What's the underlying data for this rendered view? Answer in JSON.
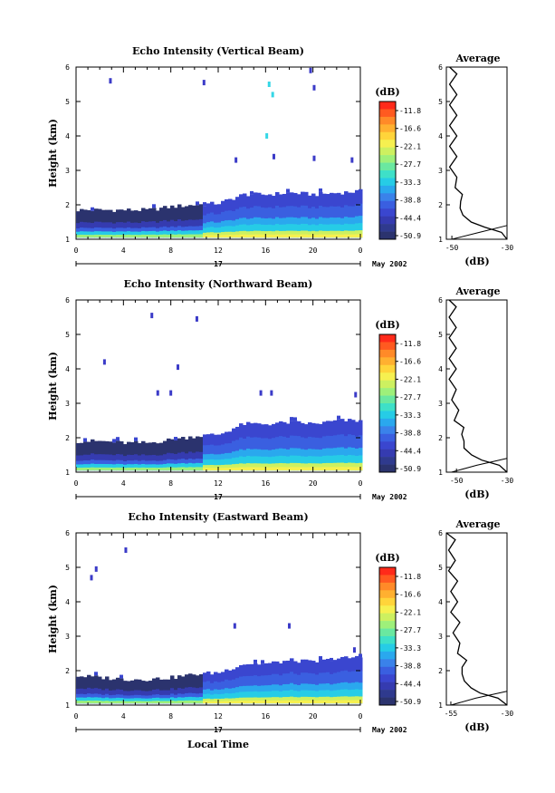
{
  "chart_data": [
    {
      "type": "heatmap",
      "title": "Echo Intensity (Vertical Beam)",
      "ylabel": "Height (km)",
      "xlabel": "",
      "x_ticks": [
        "0",
        "4",
        "8",
        "12",
        "16",
        "20",
        "0"
      ],
      "y_ticks": [
        "1",
        "2",
        "3",
        "4",
        "5",
        "6"
      ],
      "xlim": [
        0,
        24
      ],
      "ylim": [
        1,
        6
      ],
      "date_day": "17",
      "date_month": "May 2002",
      "layer_top_km": [
        1.85,
        1.85,
        1.85,
        1.85,
        1.95,
        2.0,
        2.05,
        2.3,
        2.3,
        2.35,
        2.3,
        2.35,
        2.4
      ],
      "high_echoes": [
        {
          "t": 2.9,
          "h": 5.6,
          "c": "#3b3bc8"
        },
        {
          "t": 10.8,
          "h": 5.55,
          "c": "#3b3bc8"
        },
        {
          "t": 16.3,
          "h": 5.5,
          "c": "#35d7e6"
        },
        {
          "t": 16.6,
          "h": 5.2,
          "c": "#35d7e6"
        },
        {
          "t": 16.1,
          "h": 4.0,
          "c": "#35d7e6"
        },
        {
          "t": 20.1,
          "h": 5.4,
          "c": "#3b3bc8"
        },
        {
          "t": 19.8,
          "h": 5.9,
          "c": "#3b3bc8"
        },
        {
          "t": 13.5,
          "h": 3.3,
          "c": "#3b3bc8"
        },
        {
          "t": 16.7,
          "h": 3.4,
          "c": "#3b3bc8"
        },
        {
          "t": 20.1,
          "h": 3.35,
          "c": "#3b3bc8"
        },
        {
          "t": 23.3,
          "h": 3.3,
          "c": "#3b3bc8"
        }
      ],
      "average": {
        "title": "Average",
        "xlabel": "(dB)",
        "x_ticks": [
          "-50",
          "-30"
        ],
        "xlim": [
          -52,
          -30
        ],
        "y_ticks": [
          "1",
          "2",
          "3",
          "4",
          "5",
          "6"
        ],
        "heights": [
          1.0,
          1.2,
          1.35,
          1.5,
          1.7,
          1.9,
          2.1,
          2.3,
          2.5,
          2.8,
          3.1,
          3.4,
          3.7,
          4.0,
          4.3,
          4.6,
          4.9,
          5.2,
          5.5,
          5.8,
          6.0
        ],
        "values": [
          -30,
          -32,
          -38,
          -43,
          -46,
          -47,
          -46,
          -47,
          -48,
          -49,
          -50,
          -49,
          -50,
          -49,
          -50,
          -49,
          -50,
          -49,
          -50,
          -49,
          -50
        ],
        "low_line_heights": [
          1.0,
          1.2,
          1.4
        ],
        "low_line_values": [
          -50,
          -40,
          -30
        ]
      }
    },
    {
      "type": "heatmap",
      "title": "Echo Intensity (Northward Beam)",
      "ylabel": "Height (km)",
      "xlabel": "",
      "x_ticks": [
        "0",
        "4",
        "8",
        "12",
        "16",
        "20",
        "0"
      ],
      "y_ticks": [
        "1",
        "2",
        "3",
        "4",
        "5",
        "6"
      ],
      "xlim": [
        0,
        24
      ],
      "ylim": [
        1,
        6
      ],
      "date_day": "17",
      "date_month": "May 2002",
      "layer_top_km": [
        1.9,
        1.9,
        1.85,
        1.85,
        1.95,
        2.05,
        2.1,
        2.4,
        2.4,
        2.45,
        2.4,
        2.5,
        2.5
      ],
      "high_echoes": [
        {
          "t": 6.4,
          "h": 5.55,
          "c": "#3b3bc8"
        },
        {
          "t": 10.2,
          "h": 5.45,
          "c": "#3b3bc8"
        },
        {
          "t": 2.4,
          "h": 4.2,
          "c": "#3b3bc8"
        },
        {
          "t": 8.6,
          "h": 4.05,
          "c": "#3b3bc8"
        },
        {
          "t": 6.9,
          "h": 3.3,
          "c": "#3b3bc8"
        },
        {
          "t": 8.0,
          "h": 3.3,
          "c": "#3b3bc8"
        },
        {
          "t": 15.6,
          "h": 3.3,
          "c": "#3b3bc8"
        },
        {
          "t": 16.5,
          "h": 3.3,
          "c": "#3b3bc8"
        },
        {
          "t": 23.6,
          "h": 3.25,
          "c": "#3b3bc8"
        }
      ],
      "average": {
        "title": "Average",
        "xlabel": "(dB)",
        "x_ticks": [
          "-50",
          "-30"
        ],
        "xlim": [
          -54,
          -30
        ],
        "y_ticks": [
          "1",
          "2",
          "3",
          "4",
          "5",
          "6"
        ],
        "heights": [
          1.0,
          1.2,
          1.35,
          1.5,
          1.7,
          1.9,
          2.1,
          2.3,
          2.5,
          2.8,
          3.1,
          3.4,
          3.7,
          4.0,
          4.3,
          4.6,
          4.9,
          5.2,
          5.5,
          5.8,
          6.0
        ],
        "values": [
          -30,
          -33,
          -40,
          -44,
          -47,
          -47,
          -47,
          -48,
          -50,
          -50,
          -51,
          -51,
          -52,
          -51,
          -52,
          -51,
          -52,
          -51,
          -52,
          -51,
          -52
        ],
        "low_line_heights": [
          1.0,
          1.2,
          1.4
        ],
        "low_line_values": [
          -52,
          -42,
          -30
        ]
      }
    },
    {
      "type": "heatmap",
      "title": "Echo Intensity (Eastward Beam)",
      "ylabel": "Height (km)",
      "xlabel": "Local Time",
      "x_ticks": [
        "0",
        "4",
        "8",
        "12",
        "16",
        "20",
        "0"
      ],
      "y_ticks": [
        "1",
        "2",
        "3",
        "4",
        "5",
        "6"
      ],
      "xlim": [
        0,
        24
      ],
      "ylim": [
        1,
        6
      ],
      "date_day": "17",
      "date_month": "May 2002",
      "layer_top_km": [
        1.85,
        1.8,
        1.75,
        1.75,
        1.8,
        1.9,
        1.95,
        2.2,
        2.2,
        2.3,
        2.25,
        2.35,
        2.4
      ],
      "high_echoes": [
        {
          "t": 4.2,
          "h": 5.5,
          "c": "#3b3bc8"
        },
        {
          "t": 1.7,
          "h": 4.95,
          "c": "#3b3bc8"
        },
        {
          "t": 1.3,
          "h": 4.7,
          "c": "#3b3bc8"
        },
        {
          "t": 13.4,
          "h": 3.3,
          "c": "#3b3bc8"
        },
        {
          "t": 18.0,
          "h": 3.3,
          "c": "#3b3bc8"
        },
        {
          "t": 23.5,
          "h": 2.6,
          "c": "#3b3bc8"
        }
      ],
      "average": {
        "title": "Average",
        "xlabel": "(dB)",
        "x_ticks": [
          "-55",
          "-30"
        ],
        "xlim": [
          -57,
          -30
        ],
        "y_ticks": [
          "1",
          "2",
          "3",
          "4",
          "5",
          "6"
        ],
        "heights": [
          1.0,
          1.2,
          1.35,
          1.5,
          1.7,
          1.9,
          2.1,
          2.3,
          2.5,
          2.8,
          3.1,
          3.4,
          3.7,
          4.0,
          4.3,
          4.6,
          4.9,
          5.2,
          5.5,
          5.8,
          6.0
        ],
        "values": [
          -30,
          -34,
          -42,
          -46,
          -49,
          -50,
          -49,
          -49,
          -51,
          -52,
          -53,
          -52,
          -54,
          -53,
          -54,
          -53,
          -55,
          -54,
          -55,
          -54,
          -56
        ],
        "low_line_heights": [
          1.0,
          1.2,
          1.4
        ],
        "low_line_values": [
          -55,
          -44,
          -30
        ]
      }
    }
  ],
  "colorbar": {
    "title": "(dB)",
    "labels": [
      "-11.8",
      "-16.6",
      "-22.1",
      "-27.7",
      "-33.3",
      "-38.8",
      "-44.4",
      "-50.9"
    ],
    "colors": [
      "#ff2a1a",
      "#ff5a20",
      "#ff8a28",
      "#ffb030",
      "#ffd43a",
      "#f6f050",
      "#cdf060",
      "#9ef07a",
      "#6ae8a0",
      "#3ee0c8",
      "#26cce6",
      "#2aa8ee",
      "#3a82ea",
      "#3a5fe0",
      "#3a46cf",
      "#353bb0",
      "#2f3a8e",
      "#2b336e"
    ]
  }
}
